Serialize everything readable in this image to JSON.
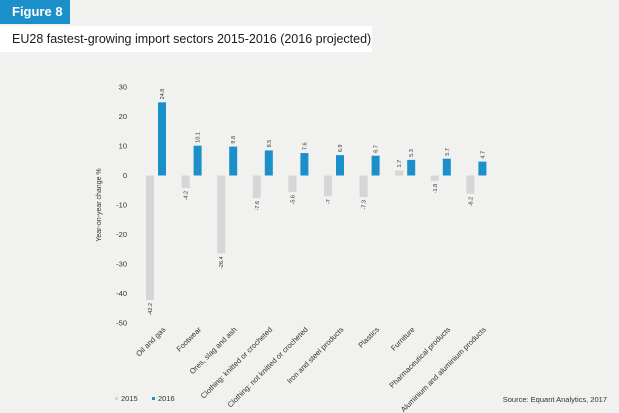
{
  "figure_label": "Figure 8",
  "chart_title": "EU28 fastest-growing import sectors 2015-2016 (2016 projected)",
  "source": "Source: Equant Analytics, 2017",
  "colors": {
    "s2015": "#d6d6d6",
    "s2016": "#1a8fc9",
    "accent": "#1a8fc9"
  },
  "chart_data": {
    "type": "bar",
    "title": "EU28 fastest-growing import sectors 2015-2016 (2016 projected)",
    "ylabel": "Year-on-year change %",
    "xlabel": "",
    "ylim": [
      -50,
      30
    ],
    "yticks": [
      30,
      20,
      10,
      0,
      -10,
      -20,
      -30,
      -40,
      -50
    ],
    "grid": false,
    "legend_position": "bottom-left",
    "categories": [
      "Oil and gas",
      "Footwear",
      "Ores, slag and ash",
      "Clothing: knitted or crocheted",
      "Clothing: not knitted or crocheted",
      "Iron and steel products",
      "Plastics",
      "Furniture",
      "Pharmaceutical products",
      "Aluminium and aluminium products"
    ],
    "series": [
      {
        "name": "2015",
        "values": [
          -42.2,
          -4.2,
          -26.4,
          -7.6,
          -5.6,
          -7,
          -7.3,
          1.7,
          -1.8,
          -6.2
        ],
        "labels": [
          "-42.2",
          "-4.2",
          "-26.4",
          "-7.6",
          "-5.6",
          "-7",
          "-7.3",
          "1.7",
          "-1.8",
          "-6.2"
        ]
      },
      {
        "name": "2016",
        "values": [
          24.8,
          10.1,
          9.8,
          8.5,
          7.6,
          6.9,
          6.7,
          5.3,
          5.7,
          4.7
        ],
        "labels": [
          "24.8",
          "10.1",
          "9.8",
          "8.5",
          "7.6",
          "6.9",
          "6.7",
          "5.3",
          "5.7",
          "4.7"
        ]
      }
    ]
  }
}
